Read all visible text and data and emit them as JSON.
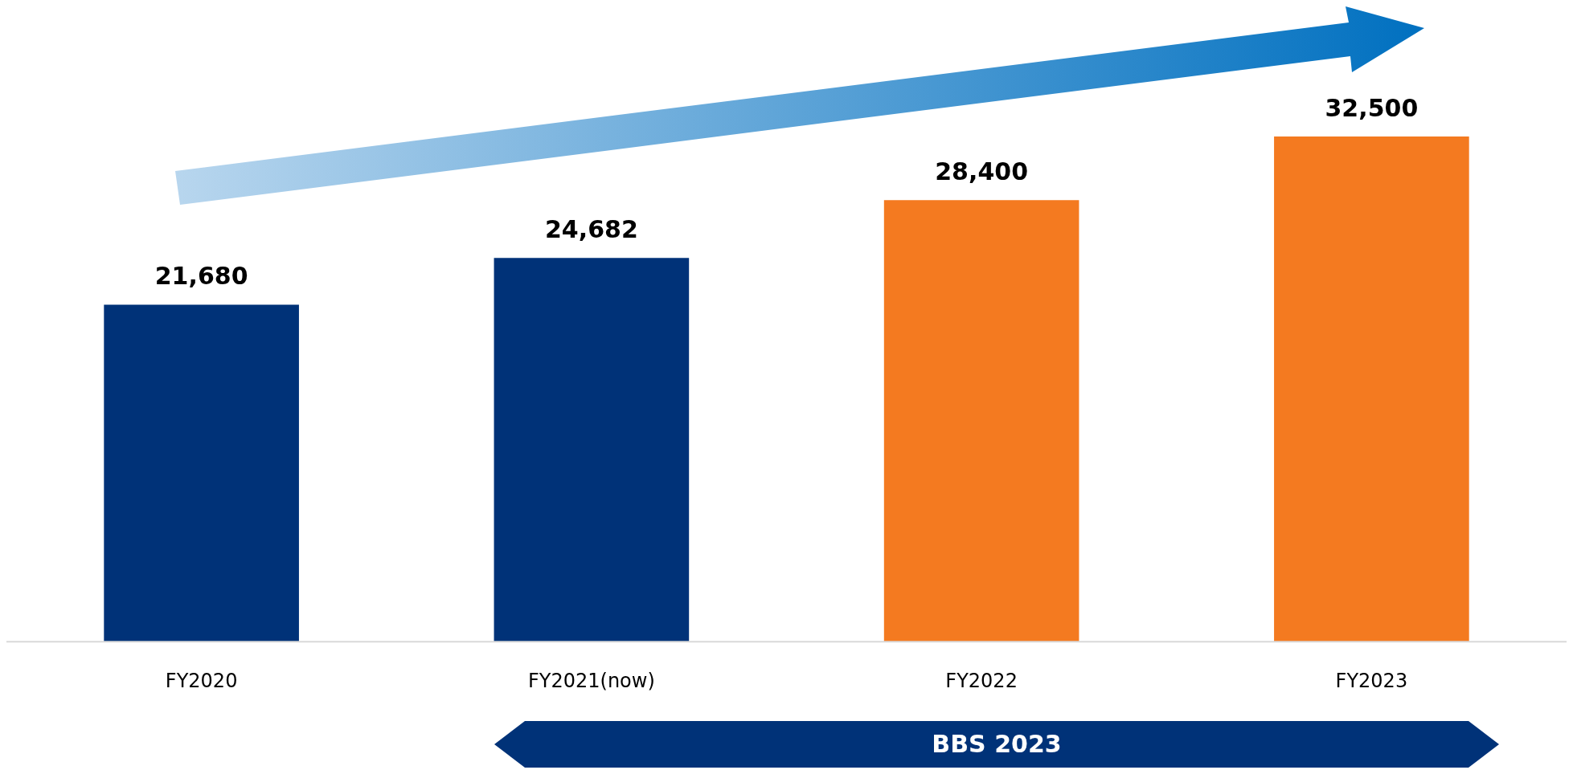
{
  "chart_data": {
    "type": "bar",
    "categories": [
      "FY2020",
      "FY2021(now)",
      "FY2022",
      "FY2023"
    ],
    "values": [
      21680,
      24682,
      28400,
      32500
    ],
    "colors": [
      "#003278",
      "#003278",
      "#f47a20",
      "#f47a20"
    ],
    "value_labels": [
      "21,680",
      "24,682",
      "28,400",
      "32,500"
    ],
    "grid": false,
    "legend": false,
    "annotations": [
      "BBS 2023"
    ]
  }
}
